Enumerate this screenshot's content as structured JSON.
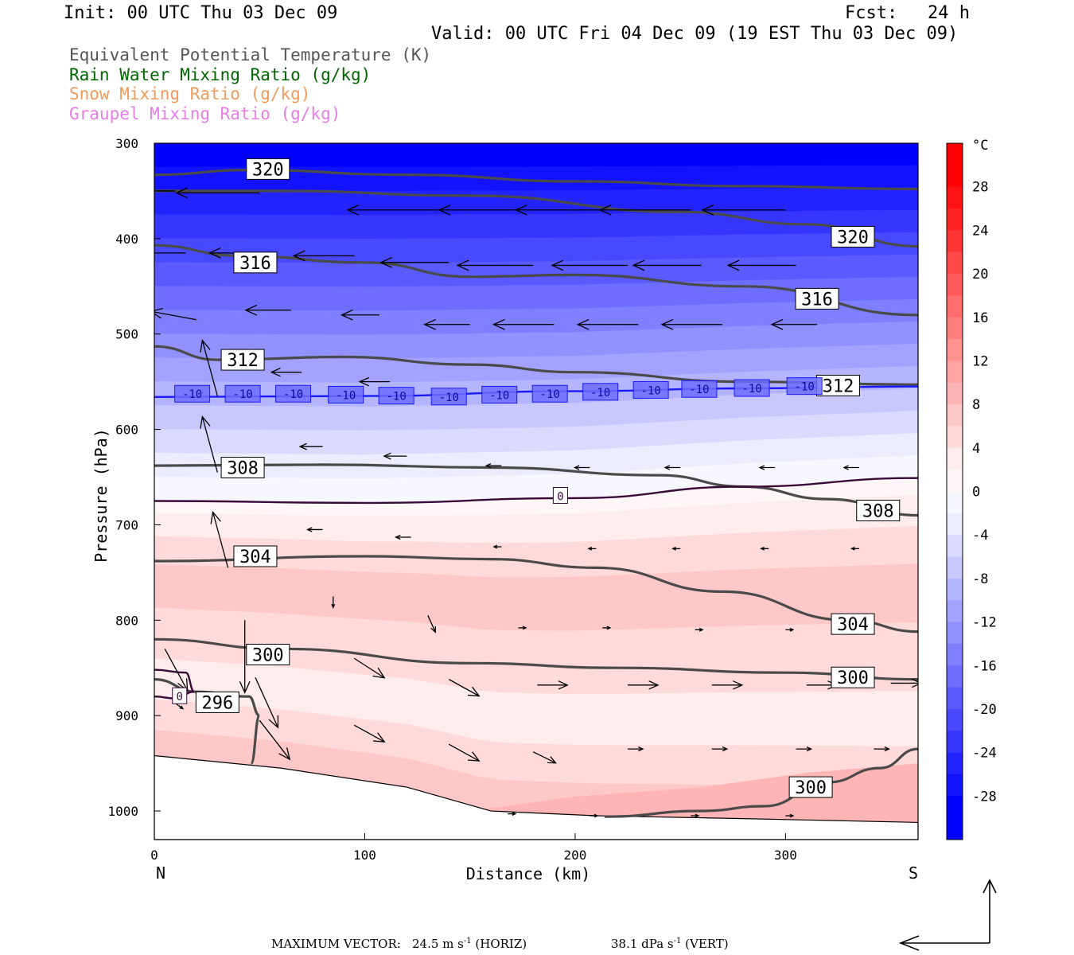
{
  "header": {
    "init": "Init: 00 UTC Thu 03 Dec 09",
    "fcst_label": "Fcst:",
    "fcst_value": "24 h",
    "valid": "Valid: 00 UTC Fri 04 Dec 09 (19 EST Thu 03 Dec 09)"
  },
  "legend": [
    {
      "label": "Equivalent Potential Temperature (K)",
      "color": "#555555"
    },
    {
      "label": "Rain Water Mixing Ratio (g/kg)",
      "color": "#006400"
    },
    {
      "label": "Snow Mixing Ratio (g/kg)",
      "color": "#f09a5c"
    },
    {
      "label": "Graupel Mixing Ratio (g/kg)",
      "color": "#e67ee6"
    }
  ],
  "chart_data": {
    "type": "cross-section",
    "xlabel": "Distance (km)",
    "ylabel": "Pressure (hPa)",
    "xlim": [
      0,
      363
    ],
    "ylim": [
      1030,
      300
    ],
    "y_reversed": true,
    "x_ticks": [
      0,
      100,
      200,
      300
    ],
    "y_ticks": [
      300,
      400,
      500,
      600,
      700,
      800,
      900,
      1000
    ],
    "x_end_labels": {
      "left": "N",
      "right": "S"
    },
    "temperature_fill": {
      "units": "°C",
      "colorbar_ticks": [
        28,
        24,
        20,
        16,
        12,
        8,
        4,
        0,
        -4,
        -8,
        -12,
        -16,
        -20,
        -24,
        -28
      ],
      "range": [
        -32,
        32
      ],
      "colors_cold": [
        "#0000ff",
        "#1212ff",
        "#2323ff",
        "#3535ff",
        "#4848ff",
        "#5a5aff",
        "#6d6dff",
        "#7f7fff",
        "#9191ff",
        "#a3a3ff",
        "#b5b5ff",
        "#c8c8ff",
        "#dadaff",
        "#ececff",
        "#f7f7ff"
      ],
      "colors_warm": [
        "#fff7f7",
        "#ffecec",
        "#ffdada",
        "#ffc8c8",
        "#ffb5b5",
        "#ffa3a3",
        "#ff9191",
        "#ff7f7f",
        "#ff6d6d",
        "#ff5a5a",
        "#ff4848",
        "#ff3535",
        "#ff2323",
        "#ff1212",
        "#ff0000"
      ]
    },
    "theta_e_contours": [
      {
        "value": 320,
        "points": [
          [
            0,
            333
          ],
          [
            45,
            328
          ],
          [
            120,
            333
          ],
          [
            200,
            340
          ],
          [
            280,
            345
          ],
          [
            363,
            348
          ]
        ],
        "labels": [
          [
            54,
            327
          ]
        ]
      },
      {
        "value": 320,
        "points": [
          [
            0,
            350
          ],
          [
            60,
            350
          ],
          [
            150,
            355
          ],
          [
            250,
            372
          ],
          [
            310,
            385
          ],
          [
            363,
            408
          ]
        ],
        "labels": [
          [
            332,
            398
          ]
        ]
      },
      {
        "value": 316,
        "points": [
          [
            0,
            407
          ],
          [
            40,
            418
          ],
          [
            100,
            425
          ],
          [
            150,
            440
          ],
          [
            200,
            438
          ],
          [
            280,
            450
          ],
          [
            363,
            480
          ]
        ],
        "labels": [
          [
            48,
            425
          ]
        ]
      },
      {
        "value": 316,
        "points": [
          [
            0,
            407
          ],
          [
            40,
            418
          ],
          [
            100,
            425
          ],
          [
            150,
            440
          ],
          [
            200,
            438
          ],
          [
            280,
            450
          ],
          [
            363,
            480
          ]
        ],
        "labels": [
          [
            315,
            463
          ]
        ]
      },
      {
        "value": 312,
        "points": [
          [
            0,
            513
          ],
          [
            30,
            527
          ],
          [
            90,
            524
          ],
          [
            150,
            532
          ],
          [
            200,
            540
          ],
          [
            280,
            550
          ],
          [
            363,
            553
          ]
        ],
        "labels": [
          [
            42,
            527
          ]
        ]
      },
      {
        "value": 312,
        "points": [
          [
            0,
            513
          ],
          [
            30,
            527
          ],
          [
            90,
            524
          ],
          [
            150,
            532
          ],
          [
            200,
            540
          ],
          [
            280,
            550
          ],
          [
            363,
            553
          ]
        ],
        "labels": [
          [
            325,
            554
          ]
        ]
      },
      {
        "value": 308,
        "points": [
          [
            0,
            638
          ],
          [
            80,
            637
          ],
          [
            160,
            640
          ],
          [
            240,
            648
          ],
          [
            280,
            660
          ],
          [
            320,
            673
          ],
          [
            363,
            690
          ]
        ],
        "labels": [
          [
            42,
            640
          ]
        ]
      },
      {
        "value": 308,
        "points": [
          [
            0,
            638
          ],
          [
            80,
            637
          ],
          [
            160,
            640
          ],
          [
            240,
            648
          ],
          [
            280,
            660
          ],
          [
            320,
            673
          ],
          [
            363,
            690
          ]
        ],
        "labels": [
          [
            344,
            685
          ]
        ]
      },
      {
        "value": 304,
        "points": [
          [
            0,
            738
          ],
          [
            100,
            733
          ],
          [
            160,
            736
          ],
          [
            210,
            745
          ],
          [
            270,
            770
          ],
          [
            330,
            800
          ],
          [
            363,
            812
          ]
        ],
        "labels": [
          [
            48,
            733
          ]
        ]
      },
      {
        "value": 304,
        "points": [
          [
            0,
            738
          ],
          [
            100,
            733
          ],
          [
            160,
            736
          ],
          [
            210,
            745
          ],
          [
            270,
            770
          ],
          [
            330,
            800
          ],
          [
            363,
            812
          ]
        ],
        "labels": [
          [
            332,
            804
          ]
        ]
      },
      {
        "value": 300,
        "points": [
          [
            0,
            820
          ],
          [
            60,
            830
          ],
          [
            150,
            845
          ],
          [
            220,
            850
          ],
          [
            300,
            855
          ],
          [
            363,
            862
          ]
        ],
        "labels": [
          [
            54,
            836
          ]
        ]
      },
      {
        "value": 300,
        "points": [
          [
            0,
            820
          ],
          [
            60,
            830
          ],
          [
            150,
            845
          ],
          [
            220,
            850
          ],
          [
            300,
            855
          ],
          [
            363,
            862
          ]
        ],
        "labels": [
          [
            332,
            860
          ]
        ]
      },
      {
        "value": 296,
        "points": [
          [
            0,
            862
          ],
          [
            20,
            875
          ],
          [
            45,
            880
          ],
          [
            50,
            900
          ],
          [
            46,
            950
          ]
        ],
        "labels": [
          [
            30,
            886
          ]
        ]
      },
      {
        "value": 300,
        "points": [
          [
            214,
            1006
          ],
          [
            260,
            1000
          ],
          [
            290,
            995
          ],
          [
            320,
            970
          ],
          [
            345,
            955
          ],
          [
            363,
            935
          ]
        ],
        "labels": [
          [
            312,
            975
          ]
        ]
      }
    ],
    "isotherm_0C": [
      [
        0,
        675
      ],
      [
        100,
        677
      ],
      [
        200,
        672
      ],
      [
        280,
        660
      ],
      [
        363,
        651
      ]
    ],
    "isotherm_0C_label": [
      [
        193,
        670
      ]
    ],
    "isotherm_minus10C": [
      [
        0,
        566
      ],
      [
        100,
        565
      ],
      [
        200,
        560
      ],
      [
        280,
        557
      ],
      [
        363,
        555
      ]
    ],
    "isotherm_minus10C_labels": [
      [
        18,
        563
      ],
      [
        42,
        563
      ],
      [
        66,
        563
      ],
      [
        91,
        564
      ],
      [
        115,
        565
      ],
      [
        140,
        566
      ],
      [
        164,
        564
      ],
      [
        188,
        563
      ],
      [
        212,
        561
      ],
      [
        236,
        559
      ],
      [
        259,
        558
      ],
      [
        284,
        557
      ],
      [
        309,
        555
      ]
    ],
    "ground_pressure": [
      [
        0,
        942
      ],
      [
        60,
        955
      ],
      [
        120,
        975
      ],
      [
        160,
        1000
      ],
      [
        210,
        1005
      ],
      [
        280,
        1008
      ],
      [
        363,
        1012
      ]
    ],
    "vectors": [
      {
        "x": 10,
        "p": 350,
        "u": -11,
        "w": 0
      },
      {
        "x": 50,
        "p": 352,
        "u": -11,
        "w": 0
      },
      {
        "x": 135,
        "p": 370,
        "u": -12,
        "w": 0
      },
      {
        "x": 175,
        "p": 370,
        "u": -11,
        "w": 0
      },
      {
        "x": 215,
        "p": 370,
        "u": -12,
        "w": 0
      },
      {
        "x": 255,
        "p": 370,
        "u": -12,
        "w": 0
      },
      {
        "x": 300,
        "p": 370,
        "u": -11,
        "w": 0
      },
      {
        "x": 15,
        "p": 415,
        "u": -9,
        "w": 0
      },
      {
        "x": 55,
        "p": 415,
        "u": -8,
        "w": 0
      },
      {
        "x": 95,
        "p": 418,
        "u": -8,
        "w": 0
      },
      {
        "x": 140,
        "p": 425,
        "u": -9,
        "w": 0
      },
      {
        "x": 180,
        "p": 428,
        "u": -10,
        "w": 0
      },
      {
        "x": 225,
        "p": 428,
        "u": -10,
        "w": 0
      },
      {
        "x": 260,
        "p": 428,
        "u": -9,
        "w": 0
      },
      {
        "x": 305,
        "p": 428,
        "u": -9,
        "w": 0
      },
      {
        "x": 20,
        "p": 485,
        "u": -6,
        "w": -3
      },
      {
        "x": 65,
        "p": 475,
        "u": -6,
        "w": 0
      },
      {
        "x": 107,
        "p": 480,
        "u": -5,
        "w": 0
      },
      {
        "x": 150,
        "p": 490,
        "u": -6,
        "w": 0
      },
      {
        "x": 190,
        "p": 490,
        "u": -8,
        "w": 0
      },
      {
        "x": 230,
        "p": 490,
        "u": -8,
        "w": 0
      },
      {
        "x": 270,
        "p": 490,
        "u": -8,
        "w": 0
      },
      {
        "x": 315,
        "p": 490,
        "u": -6,
        "w": 0
      },
      {
        "x": 30,
        "p": 565,
        "u": -2,
        "w": -20
      },
      {
        "x": 70,
        "p": 540,
        "u": -4,
        "w": 0
      },
      {
        "x": 112,
        "p": 550,
        "u": -4,
        "w": 0
      },
      {
        "x": 30,
        "p": 645,
        "u": -2,
        "w": -20
      },
      {
        "x": 80,
        "p": 618,
        "u": -3,
        "w": 0
      },
      {
        "x": 120,
        "p": 628,
        "u": -3,
        "w": 0
      },
      {
        "x": 165,
        "p": 638,
        "u": -2,
        "w": 0
      },
      {
        "x": 207,
        "p": 640,
        "u": -2,
        "w": 0
      },
      {
        "x": 250,
        "p": 640,
        "u": -2,
        "w": 0
      },
      {
        "x": 295,
        "p": 640,
        "u": -2,
        "w": 0
      },
      {
        "x": 335,
        "p": 640,
        "u": -2,
        "w": 0
      },
      {
        "x": 35,
        "p": 745,
        "u": -2,
        "w": -20
      },
      {
        "x": 80,
        "p": 705,
        "u": -2,
        "w": 0
      },
      {
        "x": 122,
        "p": 713,
        "u": -2,
        "w": 0
      },
      {
        "x": 165,
        "p": 723,
        "u": -1,
        "w": 0
      },
      {
        "x": 210,
        "p": 725,
        "u": -1,
        "w": 0
      },
      {
        "x": 250,
        "p": 725,
        "u": -1,
        "w": 0
      },
      {
        "x": 292,
        "p": 725,
        "u": -1,
        "w": 0
      },
      {
        "x": 335,
        "p": 725,
        "u": -1,
        "w": 0
      },
      {
        "x": 5,
        "p": 830,
        "u": 3,
        "w": 15
      },
      {
        "x": 43,
        "p": 800,
        "u": 0,
        "w": 26
      },
      {
        "x": 85,
        "p": 775,
        "u": 0,
        "w": 4
      },
      {
        "x": 130,
        "p": 795,
        "u": 1,
        "w": 6
      },
      {
        "x": 173,
        "p": 808,
        "u": 1,
        "w": 0
      },
      {
        "x": 213,
        "p": 808,
        "u": 1,
        "w": 0
      },
      {
        "x": 257,
        "p": 810,
        "u": 1,
        "w": 0
      },
      {
        "x": 300,
        "p": 810,
        "u": 1,
        "w": 0
      },
      {
        "x": 48,
        "p": 860,
        "u": 3,
        "w": 18
      },
      {
        "x": 95,
        "p": 840,
        "u": 4,
        "w": 7
      },
      {
        "x": 140,
        "p": 862,
        "u": 4,
        "w": 6
      },
      {
        "x": 182,
        "p": 868,
        "u": 4,
        "w": 0
      },
      {
        "x": 225,
        "p": 868,
        "u": 4,
        "w": 0
      },
      {
        "x": 265,
        "p": 868,
        "u": 4,
        "w": 0
      },
      {
        "x": 310,
        "p": 868,
        "u": 4,
        "w": 0
      },
      {
        "x": 350,
        "p": 866,
        "u": 4,
        "w": 0
      },
      {
        "x": 10,
        "p": 887,
        "u": 1,
        "w": 2
      },
      {
        "x": 50,
        "p": 905,
        "u": 4,
        "w": 14
      },
      {
        "x": 95,
        "p": 910,
        "u": 4,
        "w": 6
      },
      {
        "x": 140,
        "p": 930,
        "u": 4,
        "w": 6
      },
      {
        "x": 180,
        "p": 938,
        "u": 3,
        "w": 4
      },
      {
        "x": 225,
        "p": 935,
        "u": 2,
        "w": 0
      },
      {
        "x": 265,
        "p": 935,
        "u": 2,
        "w": 0
      },
      {
        "x": 305,
        "p": 935,
        "u": 2,
        "w": 0
      },
      {
        "x": 342,
        "p": 935,
        "u": 2,
        "w": 0
      },
      {
        "x": 168,
        "p": 1003,
        "u": 1,
        "w": 0
      },
      {
        "x": 207,
        "p": 1005,
        "u": 1,
        "w": 0
      },
      {
        "x": 255,
        "p": 1005,
        "u": 1,
        "w": 0
      },
      {
        "x": 300,
        "p": 1005,
        "u": 1,
        "w": 0
      }
    ]
  },
  "footer": {
    "label": "MAXIMUM VECTOR:",
    "horiz_value": "24.5 m s",
    "horiz_exp": "-1",
    "horiz_tag": "(HORIZ)",
    "vert_value": "38.1 dPa s",
    "vert_exp": "-1",
    "vert_tag": "(VERT)"
  }
}
